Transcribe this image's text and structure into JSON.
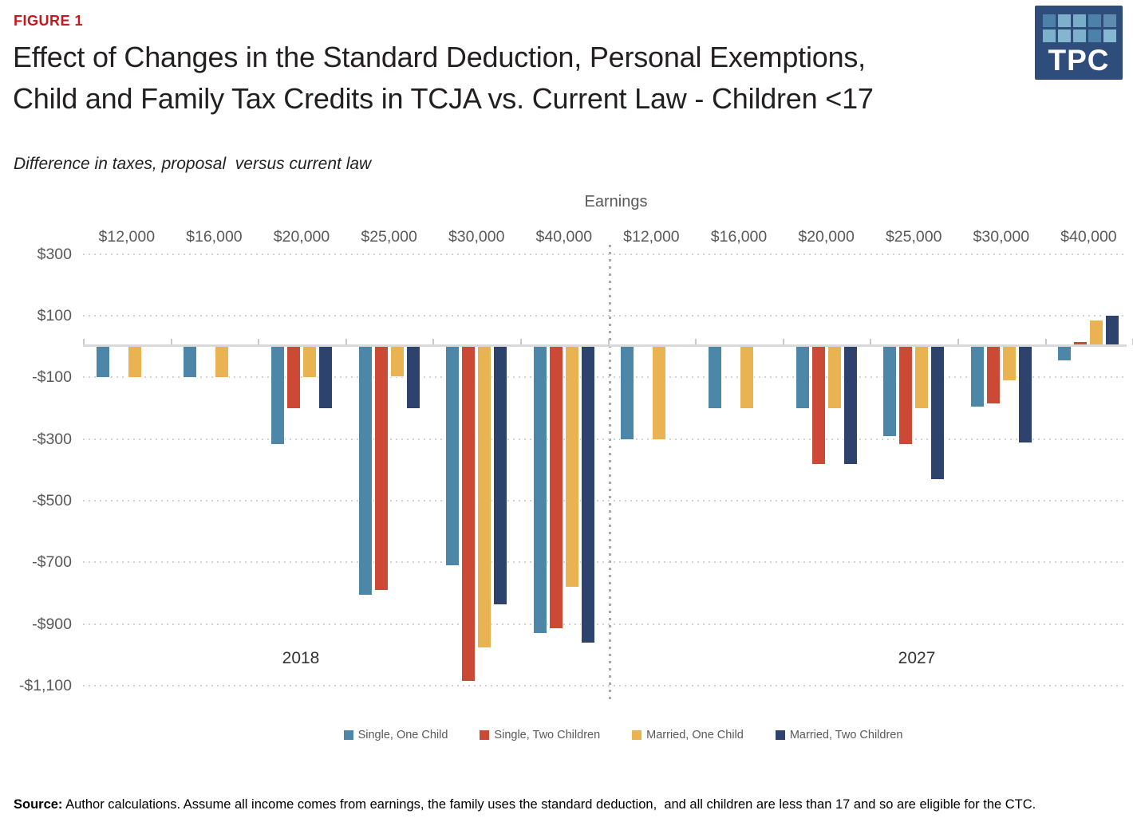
{
  "figure_label": "FIGURE 1",
  "title_line1": "Effect of Changes in the Standard Deduction, Personal Exemptions,",
  "title_line2": "Child and Family Tax Credits in TCJA vs. Current Law - Children <17",
  "subtitle": "Difference in taxes, proposal  versus current law",
  "logo": {
    "text": "TPC",
    "bg": "#2e4d7b",
    "square_colors": [
      "#4d81a9",
      "#7fb0cb",
      "#78adc7",
      "#4d81a9",
      "#5d8cb0",
      "#7db1cb",
      "#85b6cf",
      "#7db1cb",
      "#4d81a9",
      "#86b8d1"
    ]
  },
  "source": {
    "label": "Source:",
    "text": " Author calculations. Assume all income comes from earnings, the family uses the standard deduction,  and all children are less than 17 and so are eligible for the CTC."
  },
  "chart_data": {
    "type": "bar",
    "axis_title": "Earnings",
    "year_groups": [
      "2018",
      "2027"
    ],
    "categories": [
      "$12,000",
      "$16,000",
      "$20,000",
      "$25,000",
      "$30,000",
      "$40,000",
      "$12,000",
      "$16,000",
      "$20,000",
      "$25,000",
      "$30,000",
      "$40,000"
    ],
    "series": [
      {
        "name": "Single, One Child",
        "color": "#4C87A8",
        "values": [
          -100,
          -100,
          -315,
          -805,
          -710,
          -930,
          -300,
          -200,
          -200,
          -290,
          -195,
          -45
        ]
      },
      {
        "name": "Single, Two Children",
        "color": "#CC4A35",
        "values": [
          0,
          0,
          -200,
          -790,
          -1085,
          -915,
          0,
          0,
          -380,
          -315,
          -185,
          15
        ]
      },
      {
        "name": "Married, One Child",
        "color": "#E9B351",
        "values": [
          -100,
          -100,
          -100,
          -95,
          -975,
          -780,
          -300,
          -200,
          -200,
          -200,
          -110,
          85
        ]
      },
      {
        "name": "Married, Two Children",
        "color": "#2D436E",
        "values": [
          0,
          0,
          -200,
          -200,
          -835,
          -960,
          0,
          0,
          -380,
          -430,
          -310,
          100
        ]
      }
    ],
    "y_ticks": [
      {
        "label": "$300",
        "value": 300
      },
      {
        "label": "$100",
        "value": 100
      },
      {
        "label": "-$100",
        "value": -100
      },
      {
        "label": "-$300",
        "value": -300
      },
      {
        "label": "-$500",
        "value": -500
      },
      {
        "label": "-$700",
        "value": -700
      },
      {
        "label": "-$900",
        "value": -900
      },
      {
        "label": "-$1,100",
        "value": -1100
      }
    ],
    "ylim": [
      -1100,
      300
    ],
    "grid": "dotted-horizontal",
    "legend_position": "bottom"
  }
}
